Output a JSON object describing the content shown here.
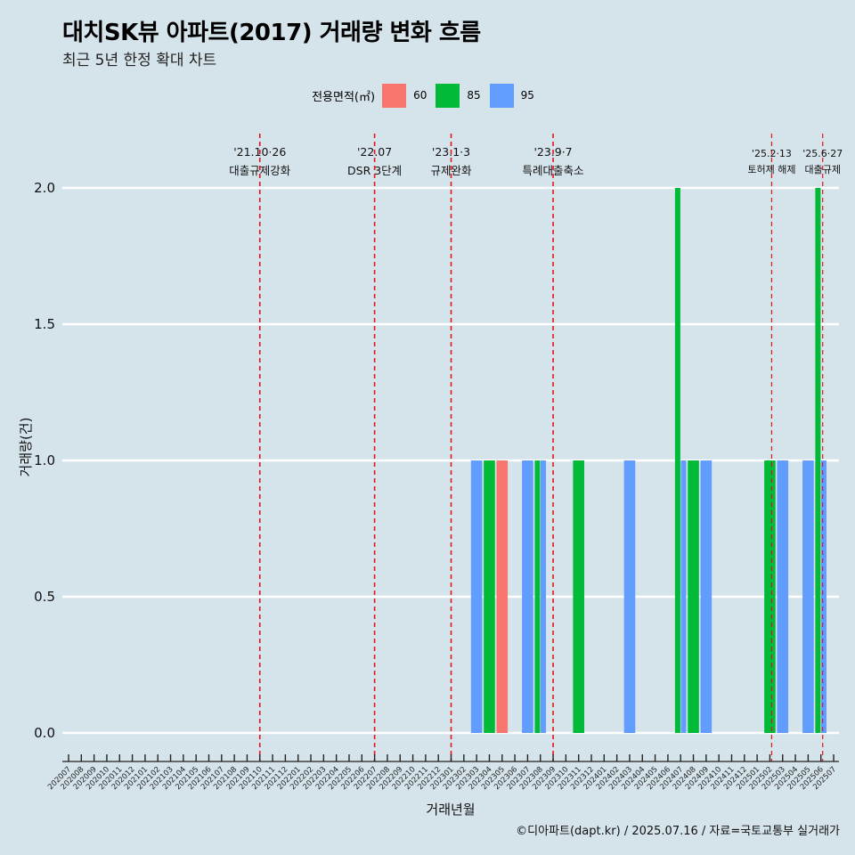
{
  "title": "대치SK뷰 아파트(2017) 거래량 변화 흐름",
  "subtitle": "최근 5년 한정 확대 차트",
  "caption": "©디아파트(dapt.kr) / 2025.07.16 / 자료=국토교통부 실거래가",
  "legend": {
    "title": "전용면적(㎡)",
    "items": [
      {
        "label": "60",
        "color": "#f8766d"
      },
      {
        "label": "85",
        "color": "#00ba38"
      },
      {
        "label": "95",
        "color": "#619cff"
      }
    ]
  },
  "chart_data": {
    "type": "bar",
    "title": "대치SK뷰 아파트(2017) 거래량 변화 흐름",
    "xlabel": "거래년월",
    "ylabel": "거래량(건)",
    "ylim": [
      0,
      2
    ],
    "yticks": [
      "0.0",
      "0.5",
      "1.0",
      "1.5",
      "2.0"
    ],
    "categories": [
      "202007",
      "202008",
      "202009",
      "202010",
      "202011",
      "202012",
      "202101",
      "202102",
      "202103",
      "202104",
      "202105",
      "202106",
      "202107",
      "202108",
      "202109",
      "202110",
      "202111",
      "202112",
      "202201",
      "202202",
      "202203",
      "202204",
      "202205",
      "202206",
      "202207",
      "202208",
      "202209",
      "202210",
      "202211",
      "202212",
      "202301",
      "202302",
      "202303",
      "202304",
      "202305",
      "202306",
      "202307",
      "202308",
      "202309",
      "202310",
      "202311",
      "202312",
      "202401",
      "202402",
      "202403",
      "202404",
      "202405",
      "202406",
      "202407",
      "202408",
      "202409",
      "202410",
      "202411",
      "202412",
      "202501",
      "202502",
      "202503",
      "202504",
      "202505",
      "202506",
      "202507"
    ],
    "series": [
      {
        "name": "60",
        "color": "#f8766d",
        "points": [
          {
            "x": "202305",
            "y": 1
          }
        ]
      },
      {
        "name": "85",
        "color": "#00ba38",
        "points": [
          {
            "x": "202304",
            "y": 1
          },
          {
            "x": "202308",
            "y": 1
          },
          {
            "x": "202311",
            "y": 1
          },
          {
            "x": "202407",
            "y": 2
          },
          {
            "x": "202408",
            "y": 1
          },
          {
            "x": "202502",
            "y": 1
          },
          {
            "x": "202506",
            "y": 2
          }
        ]
      },
      {
        "name": "95",
        "color": "#619cff",
        "points": [
          {
            "x": "202303",
            "y": 1
          },
          {
            "x": "202307",
            "y": 1
          },
          {
            "x": "202308",
            "y": 1
          },
          {
            "x": "202403",
            "y": 1
          },
          {
            "x": "202407",
            "y": 1
          },
          {
            "x": "202409",
            "y": 1
          },
          {
            "x": "202503",
            "y": 1
          },
          {
            "x": "202505",
            "y": 1
          },
          {
            "x": "202506",
            "y": 1
          }
        ]
      }
    ],
    "annotations": [
      {
        "date": "'21.10·26",
        "label": "대출규제강화",
        "x": "202110"
      },
      {
        "date": "'22.07",
        "label": "DSR 3단계",
        "x": "202207"
      },
      {
        "date": "'23.1·3",
        "label": "규제완화",
        "x": "202301"
      },
      {
        "date": "'23.9·7",
        "label": "특례대출축소",
        "x": "202309"
      },
      {
        "date": "'25.2·13",
        "label": "토허제 해제",
        "x": "202502"
      },
      {
        "date": "'25.6·27",
        "label": "대출규제",
        "x": "202506"
      }
    ]
  }
}
